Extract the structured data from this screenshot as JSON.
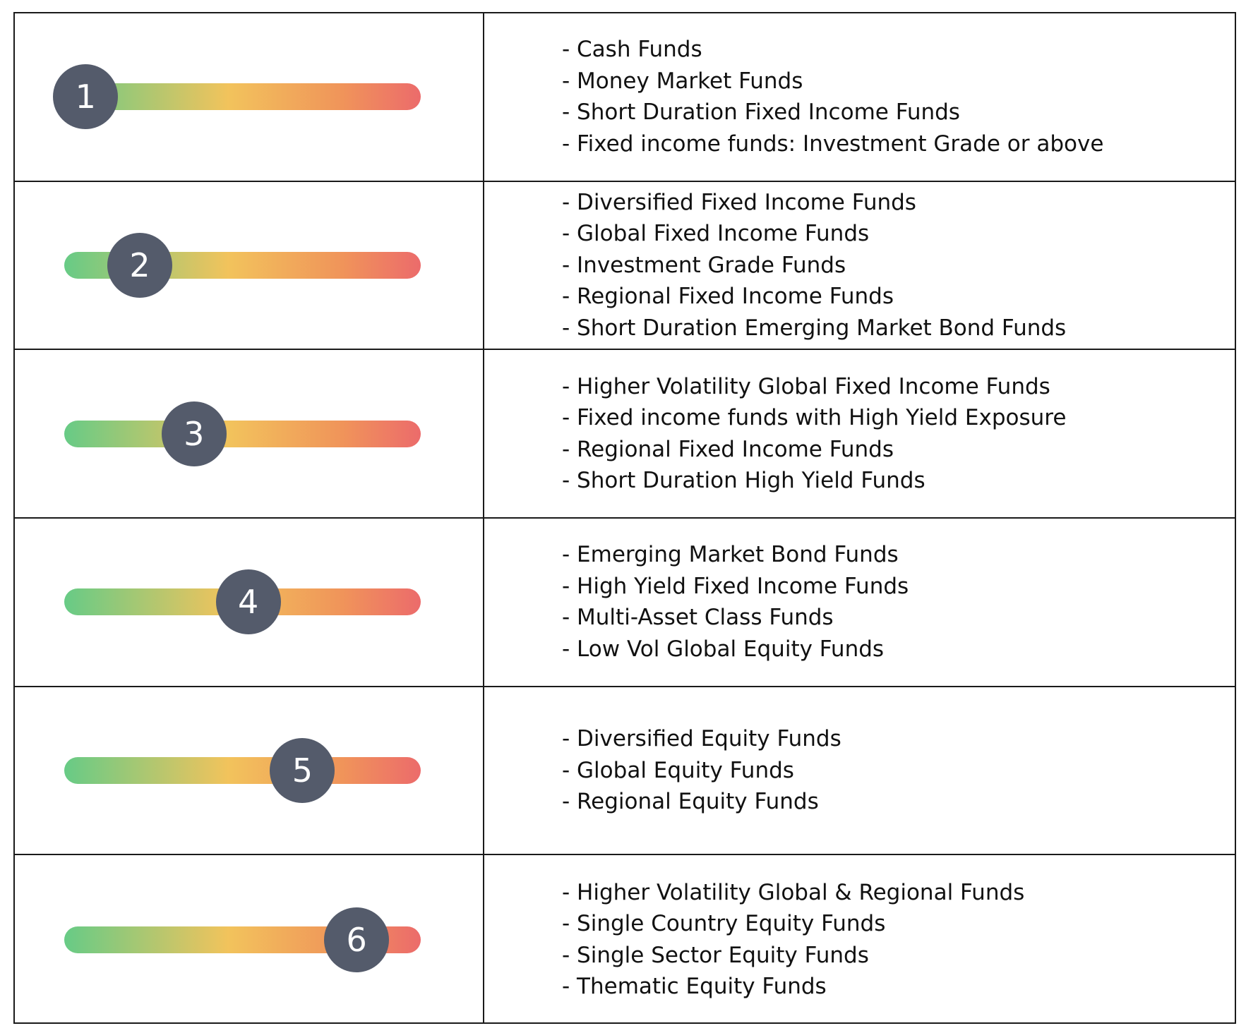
{
  "rows": [
    {
      "level": "1",
      "level_value": 1,
      "level_max": 6,
      "funds": [
        "- Cash Funds",
        "- Money Market Funds",
        "- Short Duration Fixed Income Funds",
        "- Fixed income funds: Investment Grade or above"
      ]
    },
    {
      "level": "2",
      "level_value": 2,
      "level_max": 6,
      "funds": [
        "- Diversified Fixed Income Funds",
        "- Global Fixed Income Funds",
        "- Investment Grade Funds",
        "- Regional Fixed Income Funds",
        "- Short Duration Emerging Market Bond Funds"
      ]
    },
    {
      "level": "3",
      "level_value": 3,
      "level_max": 6,
      "funds": [
        "- Higher Volatility Global Fixed Income Funds",
        "- Fixed income funds with High Yield Exposure",
        "- Regional Fixed Income Funds",
        "- Short Duration High Yield Funds"
      ]
    },
    {
      "level": "4",
      "level_value": 4,
      "level_max": 6,
      "funds": [
        "- Emerging Market Bond Funds",
        "- High Yield Fixed Income Funds",
        "- Multi-Asset Class Funds",
        "- Low Vol Global Equity Funds"
      ]
    },
    {
      "level": "5",
      "level_value": 5,
      "level_max": 6,
      "funds": [
        "- Diversified Equity Funds",
        "- Global Equity Funds",
        "- Regional Equity Funds"
      ]
    },
    {
      "level": "6",
      "level_value": 6,
      "level_max": 6,
      "funds": [
        "- Higher Volatility Global & Regional Funds",
        "- Single Country Equity Funds",
        "- Single Sector Equity Funds",
        "- Thematic Equity Funds"
      ]
    }
  ],
  "colors": {
    "track_low": "#67cb86",
    "track_mid": "#f2c35c",
    "track_high": "#ec6b6b",
    "knob": "#545b6b",
    "border": "#1a1a1a",
    "text": "#111111"
  }
}
